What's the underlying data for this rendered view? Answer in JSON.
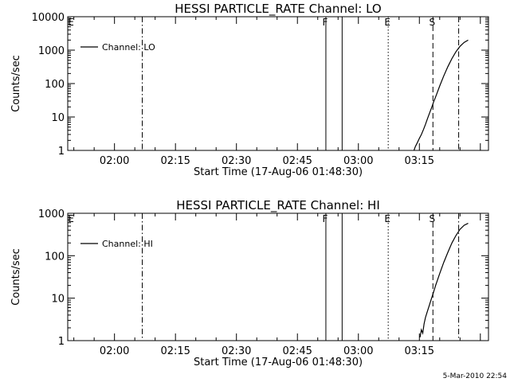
{
  "footer": "5-Mar-2010 22:54",
  "chart_data": [
    {
      "type": "line",
      "title": "HESSI PARTICLE_RATE Channel: LO",
      "xlabel": "Start Time (17-Aug-06 01:48:30)",
      "ylabel": "Counts/sec",
      "yscale": "log",
      "ylim": [
        1,
        10000
      ],
      "y_ticks": [
        "1",
        "10",
        "100",
        "1000",
        "10000"
      ],
      "xlim": [
        "01:48:30",
        "03:32:00"
      ],
      "x_ticks": [
        "02:00",
        "02:15",
        "02:30",
        "02:45",
        "03:00",
        "03:15"
      ],
      "legend": {
        "label": "Channel: LO",
        "placement": "top-left"
      },
      "grid": false,
      "series": [
        {
          "name": "Channel: LO",
          "x": [
            "03:13:20",
            "03:13:40",
            "03:14:00",
            "03:14:30",
            "03:15:00",
            "03:15:30",
            "03:16:00",
            "03:16:30",
            "03:17:00",
            "03:17:30",
            "03:18:00",
            "03:18:30",
            "03:19:00",
            "03:20:00",
            "03:21:00",
            "03:22:00",
            "03:23:00",
            "03:24:00",
            "03:25:00",
            "03:26:00",
            "03:27:00"
          ],
          "y": [
            0.8,
            1,
            1.3,
            1.7,
            2.3,
            3.0,
            4.2,
            6,
            9,
            13,
            19,
            28,
            40,
            85,
            170,
            320,
            560,
            900,
            1300,
            1700,
            2000
          ]
        }
      ],
      "vertical_markers": [
        {
          "time": "02:06:50",
          "style": "dashdot",
          "label": ""
        },
        {
          "time": "02:52:00",
          "style": "solid",
          "label": "F"
        },
        {
          "time": "02:56:00",
          "style": "solid",
          "label": ""
        },
        {
          "time": "03:07:20",
          "style": "dotted",
          "label": "E"
        },
        {
          "time": "03:18:20",
          "style": "dashed",
          "label": "S"
        },
        {
          "time": "03:24:40",
          "style": "dashdot",
          "label": ""
        }
      ],
      "edge_label": "E"
    },
    {
      "type": "line",
      "title": "HESSI PARTICLE_RATE Channel: HI",
      "xlabel": "Start Time (17-Aug-06 01:48:30)",
      "ylabel": "Counts/sec",
      "yscale": "log",
      "ylim": [
        1,
        1000
      ],
      "y_ticks": [
        "1",
        "10",
        "100",
        "1000"
      ],
      "xlim": [
        "01:48:30",
        "03:32:00"
      ],
      "x_ticks": [
        "02:00",
        "02:15",
        "02:30",
        "02:45",
        "03:00",
        "03:15"
      ],
      "legend": {
        "label": "Channel: HI",
        "placement": "top-left"
      },
      "grid": false,
      "series": [
        {
          "name": "Channel: HI",
          "x": [
            "03:15:10",
            "03:15:30",
            "03:15:50",
            "03:16:10",
            "03:16:30",
            "03:17:00",
            "03:17:30",
            "03:18:00",
            "03:18:30",
            "03:19:00",
            "03:20:00",
            "03:21:00",
            "03:22:00",
            "03:23:00",
            "03:24:00",
            "03:25:00",
            "03:26:00",
            "03:27:00"
          ],
          "y": [
            1.2,
            1.8,
            1.5,
            2.5,
            3.5,
            5,
            7,
            10,
            14,
            20,
            38,
            70,
            120,
            200,
            300,
            420,
            520,
            580
          ]
        }
      ],
      "vertical_markers": [
        {
          "time": "02:06:50",
          "style": "dashdot",
          "label": ""
        },
        {
          "time": "02:52:00",
          "style": "solid",
          "label": "F"
        },
        {
          "time": "02:56:00",
          "style": "solid",
          "label": ""
        },
        {
          "time": "03:07:20",
          "style": "dotted",
          "label": "E"
        },
        {
          "time": "03:18:20",
          "style": "dashed",
          "label": "S"
        },
        {
          "time": "03:24:40",
          "style": "dashdot",
          "label": ""
        }
      ],
      "edge_label": "E"
    }
  ]
}
